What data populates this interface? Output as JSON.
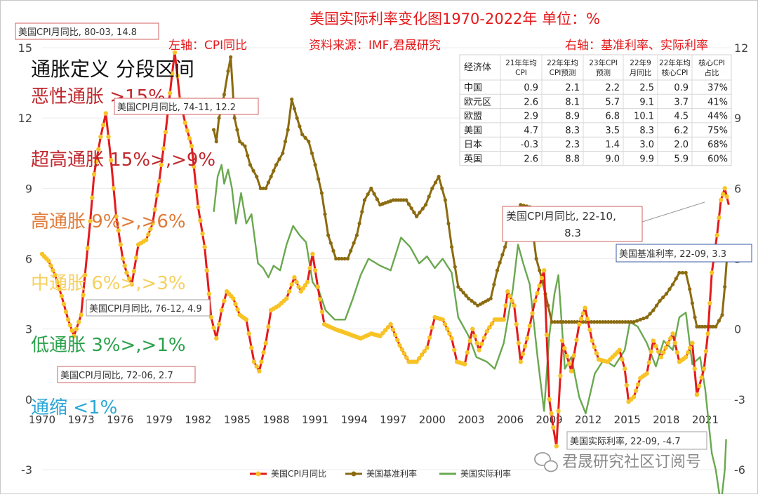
{
  "chart_data": {
    "type": "line",
    "title": "美国实际利率变化图1970-2022年 单位：%",
    "subtitle_left": "左轴：CPI同比",
    "subtitle_source": "资料来源：IMF,君晟研究",
    "subtitle_right": "右轴：基准利率、实际利率",
    "x_ticks": [
      "1970",
      "1973",
      "1976",
      "1979",
      "1982",
      "1985",
      "1988",
      "1991",
      "1994",
      "1997",
      "2000",
      "2003",
      "2006",
      "2009",
      "2012",
      "2015",
      "2018",
      "2021"
    ],
    "x_range": [
      1970,
      2023
    ],
    "y_left": {
      "ticks": [
        "-3",
        "0",
        "3",
        "6",
        "9",
        "12",
        "15"
      ],
      "range": [
        -3,
        15
      ]
    },
    "y_right": {
      "ticks": [
        "-6",
        "-3",
        "0",
        "3",
        "6",
        "9",
        "12"
      ],
      "range": [
        -6,
        12
      ]
    },
    "series": [
      {
        "name": "美国CPI月同比",
        "axis": "left",
        "color": "#e41a1c",
        "marker_color": "#f7c325",
        "points": [
          [
            1970.0,
            6.2
          ],
          [
            1970.5,
            5.9
          ],
          [
            1971.0,
            5.3
          ],
          [
            1971.5,
            4.4
          ],
          [
            1972.0,
            3.4
          ],
          [
            1972.45,
            2.7
          ],
          [
            1973.0,
            3.6
          ],
          [
            1973.3,
            5.3
          ],
          [
            1973.7,
            7.6
          ],
          [
            1974.0,
            9.6
          ],
          [
            1974.5,
            11.2
          ],
          [
            1974.9,
            12.2
          ],
          [
            1975.3,
            10.2
          ],
          [
            1975.7,
            7.8
          ],
          [
            1976.2,
            6.0
          ],
          [
            1976.5,
            5.4
          ],
          [
            1976.9,
            4.9
          ],
          [
            1977.4,
            6.6
          ],
          [
            1978.0,
            6.8
          ],
          [
            1978.5,
            7.5
          ],
          [
            1979.0,
            9.3
          ],
          [
            1979.5,
            11.4
          ],
          [
            1980.0,
            13.9
          ],
          [
            1980.2,
            14.8
          ],
          [
            1980.6,
            12.8
          ],
          [
            1981.0,
            11.8
          ],
          [
            1981.5,
            10.8
          ],
          [
            1982.0,
            8.2
          ],
          [
            1982.5,
            6.5
          ],
          [
            1983.0,
            3.5
          ],
          [
            1983.4,
            2.6
          ],
          [
            1983.8,
            3.8
          ],
          [
            1984.2,
            4.6
          ],
          [
            1984.7,
            4.3
          ],
          [
            1985.2,
            3.6
          ],
          [
            1985.7,
            3.4
          ],
          [
            1986.3,
            1.6
          ],
          [
            1986.7,
            1.2
          ],
          [
            1987.2,
            2.4
          ],
          [
            1987.6,
            3.8
          ],
          [
            1988.2,
            4.0
          ],
          [
            1988.8,
            4.3
          ],
          [
            1989.4,
            5.2
          ],
          [
            1989.9,
            4.6
          ],
          [
            1990.4,
            5.0
          ],
          [
            1990.8,
            6.2
          ],
          [
            1991.2,
            4.8
          ],
          [
            1991.7,
            3.2
          ],
          [
            1992.5,
            3.0
          ],
          [
            1993.5,
            2.8
          ],
          [
            1994.5,
            2.6
          ],
          [
            1995.3,
            2.8
          ],
          [
            1996.0,
            2.7
          ],
          [
            1996.8,
            3.2
          ],
          [
            1997.5,
            2.3
          ],
          [
            1998.2,
            1.6
          ],
          [
            1998.8,
            1.6
          ],
          [
            1999.6,
            2.2
          ],
          [
            2000.2,
            3.5
          ],
          [
            2000.8,
            3.4
          ],
          [
            2001.5,
            2.6
          ],
          [
            2001.9,
            1.6
          ],
          [
            2002.5,
            1.5
          ],
          [
            2003.1,
            3.0
          ],
          [
            2003.6,
            2.1
          ],
          [
            2004.2,
            2.9
          ],
          [
            2004.8,
            3.4
          ],
          [
            2005.5,
            3.4
          ],
          [
            2005.8,
            4.6
          ],
          [
            2006.3,
            4.0
          ],
          [
            2006.8,
            1.6
          ],
          [
            2007.3,
            2.6
          ],
          [
            2007.9,
            4.2
          ],
          [
            2008.6,
            5.5
          ],
          [
            2009.0,
            0.0
          ],
          [
            2009.3,
            -1.2
          ],
          [
            2009.55,
            -2.0
          ],
          [
            2010.0,
            2.5
          ],
          [
            2010.7,
            1.2
          ],
          [
            2011.3,
            3.2
          ],
          [
            2011.75,
            3.9
          ],
          [
            2012.3,
            2.5
          ],
          [
            2012.8,
            1.7
          ],
          [
            2013.5,
            1.6
          ],
          [
            2014.4,
            2.1
          ],
          [
            2014.8,
            1.3
          ],
          [
            2015.1,
            -0.1
          ],
          [
            2015.5,
            0.1
          ],
          [
            2016.0,
            0.9
          ],
          [
            2016.5,
            1.1
          ],
          [
            2017.0,
            2.5
          ],
          [
            2017.6,
            1.8
          ],
          [
            2018.5,
            2.8
          ],
          [
            2019.0,
            1.6
          ],
          [
            2019.5,
            1.8
          ],
          [
            2020.0,
            2.4
          ],
          [
            2020.35,
            0.2
          ],
          [
            2020.9,
            1.3
          ],
          [
            2021.2,
            2.8
          ],
          [
            2021.5,
            5.4
          ],
          [
            2021.9,
            7.0
          ],
          [
            2022.2,
            8.5
          ],
          [
            2022.5,
            9.0
          ],
          [
            2022.8,
            8.3
          ]
        ]
      },
      {
        "name": "美国基准利率",
        "axis": "right",
        "color": "#8b6b10",
        "marker_color": "#8b6b10",
        "points": [
          [
            1983.2,
            8.5
          ],
          [
            1983.4,
            8.0
          ],
          [
            1983.6,
            9.0
          ],
          [
            1983.8,
            9.4
          ],
          [
            1984.0,
            10.0
          ],
          [
            1984.3,
            11.0
          ],
          [
            1984.5,
            11.6
          ],
          [
            1984.8,
            9.0
          ],
          [
            1985.2,
            8.0
          ],
          [
            1985.6,
            7.8
          ],
          [
            1986.0,
            7.0
          ],
          [
            1986.5,
            6.5
          ],
          [
            1986.8,
            6.0
          ],
          [
            1987.2,
            6.0
          ],
          [
            1987.6,
            6.5
          ],
          [
            1988.0,
            7.0
          ],
          [
            1988.5,
            7.5
          ],
          [
            1988.9,
            8.5
          ],
          [
            1989.2,
            9.8
          ],
          [
            1989.6,
            9.0
          ],
          [
            1990.0,
            8.3
          ],
          [
            1990.5,
            8.0
          ],
          [
            1991.0,
            7.0
          ],
          [
            1991.5,
            5.8
          ],
          [
            1992.0,
            4.0
          ],
          [
            1992.6,
            3.0
          ],
          [
            1993.5,
            3.0
          ],
          [
            1994.2,
            4.0
          ],
          [
            1994.8,
            5.5
          ],
          [
            1995.3,
            6.0
          ],
          [
            1996.0,
            5.3
          ],
          [
            1997.0,
            5.5
          ],
          [
            1998.0,
            5.5
          ],
          [
            1998.8,
            4.8
          ],
          [
            1999.5,
            5.3
          ],
          [
            2000.0,
            6.0
          ],
          [
            2000.5,
            6.5
          ],
          [
            2001.0,
            5.5
          ],
          [
            2001.5,
            3.5
          ],
          [
            2002.0,
            1.8
          ],
          [
            2002.8,
            1.3
          ],
          [
            2003.5,
            1.0
          ],
          [
            2004.5,
            1.3
          ],
          [
            2005.0,
            2.5
          ],
          [
            2005.6,
            3.5
          ],
          [
            2006.2,
            4.8
          ],
          [
            2006.8,
            5.3
          ],
          [
            2007.5,
            5.2
          ],
          [
            2008.0,
            3.0
          ],
          [
            2008.5,
            2.0
          ],
          [
            2008.9,
            1.0
          ],
          [
            2009.2,
            0.3
          ],
          [
            2015.5,
            0.3
          ],
          [
            2016.0,
            0.4
          ],
          [
            2016.5,
            0.5
          ],
          [
            2017.0,
            0.8
          ],
          [
            2017.5,
            1.2
          ],
          [
            2018.0,
            1.5
          ],
          [
            2018.5,
            1.9
          ],
          [
            2019.0,
            2.4
          ],
          [
            2019.5,
            2.4
          ],
          [
            2019.8,
            1.7
          ],
          [
            2020.2,
            0.5
          ],
          [
            2020.35,
            0.1
          ],
          [
            2021.8,
            0.1
          ],
          [
            2022.3,
            0.6
          ],
          [
            2022.5,
            1.8
          ],
          [
            2022.7,
            3.3
          ],
          [
            2023.0,
            3.3
          ]
        ]
      },
      {
        "name": "美国实际利率",
        "axis": "right",
        "color": "#6aa84f",
        "marker_color": "#6aa84f",
        "points": [
          [
            1983.2,
            5.0
          ],
          [
            1983.5,
            6.5
          ],
          [
            1983.8,
            7.0
          ],
          [
            1984.0,
            6.2
          ],
          [
            1984.3,
            6.8
          ],
          [
            1984.6,
            6.0
          ],
          [
            1984.9,
            4.5
          ],
          [
            1985.3,
            5.8
          ],
          [
            1985.7,
            4.5
          ],
          [
            1986.1,
            4.9
          ],
          [
            1986.6,
            2.8
          ],
          [
            1987.0,
            2.6
          ],
          [
            1987.4,
            2.2
          ],
          [
            1987.8,
            2.7
          ],
          [
            1988.3,
            2.5
          ],
          [
            1988.8,
            3.6
          ],
          [
            1989.3,
            4.4
          ],
          [
            1989.8,
            4.0
          ],
          [
            1990.3,
            3.7
          ],
          [
            1990.8,
            2.0
          ],
          [
            1991.3,
            1.6
          ],
          [
            1991.8,
            0.8
          ],
          [
            1992.5,
            0.4
          ],
          [
            1993.3,
            0.4
          ],
          [
            1993.9,
            1.3
          ],
          [
            1994.5,
            2.3
          ],
          [
            1995.1,
            3.0
          ],
          [
            1996.0,
            2.7
          ],
          [
            1996.8,
            2.5
          ],
          [
            1997.6,
            3.9
          ],
          [
            1998.3,
            3.5
          ],
          [
            1999.0,
            2.8
          ],
          [
            1999.6,
            3.1
          ],
          [
            2000.2,
            2.6
          ],
          [
            2000.8,
            3.0
          ],
          [
            2001.5,
            2.4
          ],
          [
            2002.0,
            0.5
          ],
          [
            2002.8,
            -0.3
          ],
          [
            2003.4,
            -1.2
          ],
          [
            2004.2,
            -1.4
          ],
          [
            2004.8,
            -1.7
          ],
          [
            2005.5,
            -0.6
          ],
          [
            2006.2,
            1.7
          ],
          [
            2006.6,
            3.6
          ],
          [
            2007.0,
            2.8
          ],
          [
            2007.5,
            1.9
          ],
          [
            2008.1,
            -1.2
          ],
          [
            2008.6,
            -3.5
          ],
          [
            2009.0,
            -0.3
          ],
          [
            2009.4,
            1.5
          ],
          [
            2009.7,
            2.3
          ],
          [
            2010.2,
            -1.7
          ],
          [
            2010.7,
            -1.2
          ],
          [
            2011.3,
            -2.9
          ],
          [
            2011.8,
            -3.6
          ],
          [
            2012.5,
            -1.9
          ],
          [
            2013.2,
            -1.3
          ],
          [
            2014.0,
            -1.6
          ],
          [
            2014.8,
            -0.9
          ],
          [
            2015.2,
            0.3
          ],
          [
            2015.8,
            0.1
          ],
          [
            2016.5,
            -0.6
          ],
          [
            2017.2,
            -1.6
          ],
          [
            2017.8,
            -0.5
          ],
          [
            2018.5,
            -0.9
          ],
          [
            2019.0,
            0.5
          ],
          [
            2019.5,
            0.7
          ],
          [
            2020.0,
            -1.5
          ],
          [
            2020.6,
            -1.2
          ],
          [
            2021.0,
            -2.6
          ],
          [
            2021.5,
            -5.3
          ],
          [
            2021.8,
            -6.0
          ],
          [
            2022.2,
            -7.5
          ],
          [
            2022.5,
            -6.0
          ],
          [
            2022.6,
            -4.7
          ]
        ]
      }
    ],
    "legend": {
      "placement": "bottom-center"
    },
    "annotations": [
      {
        "text": "美国CPI月同比, 80-03, 14.8"
      },
      {
        "text": "美国CPI月同比, 74-11, 12.2"
      },
      {
        "text": "美国CPI月同比, 76-12, 4.9"
      },
      {
        "text": "美国CPI月同比, 72-06, 2.7"
      },
      {
        "text": "美国CPI月同比, 22-10,",
        "text2": "8.3"
      },
      {
        "text": "美国基准利率, 22-09, 3.3"
      },
      {
        "text": "美国实际利率, 22-09, -4.7"
      }
    ],
    "inflation_bands": {
      "heading": "通胀定义 分段区间",
      "items": [
        {
          "label": "恶性通胀 >15%",
          "color": "#c0272d"
        },
        {
          "label": "超高通胀 15%>,>9%",
          "color": "#c0272d"
        },
        {
          "label": "高通胀 9%>,>6%",
          "color": "#e07b39"
        },
        {
          "label": "中通胀 6%>,>3%",
          "color": "#f5d061"
        },
        {
          "label": "低通胀 3%>,>1%",
          "color": "#2aa14b"
        },
        {
          "label": "通缩 <1%",
          "color": "#2aa6d6"
        }
      ]
    },
    "table": {
      "headers": [
        [
          "经济体"
        ],
        [
          "21年年均",
          "CPI"
        ],
        [
          "22年年均",
          "CPI预测"
        ],
        [
          "23年CPI",
          "预测"
        ],
        [
          "22年9",
          "月同比"
        ],
        [
          "22年年均",
          "核心CPI"
        ],
        [
          "核心CPI",
          "占比"
        ]
      ],
      "rows": [
        [
          "中国",
          "0.9",
          "2.1",
          "2.2",
          "2.5",
          "0.9",
          "37%"
        ],
        [
          "欧元区",
          "2.6",
          "8.1",
          "5.7",
          "9.1",
          "3.7",
          "41%"
        ],
        [
          "欧盟",
          "2.9",
          "8.9",
          "6.8",
          "10.1",
          "4.5",
          "44%"
        ],
        [
          "美国",
          "4.7",
          "8.3",
          "3.5",
          "8.3",
          "6.2",
          "75%"
        ],
        [
          "日本",
          "-0.3",
          "2.3",
          "1.4",
          "3.0",
          "2.0",
          "68%"
        ],
        [
          "英国",
          "2.6",
          "8.8",
          "9.0",
          "9.9",
          "5.9",
          "60%"
        ]
      ]
    },
    "watermark": "君晟研究社区订阅号"
  }
}
